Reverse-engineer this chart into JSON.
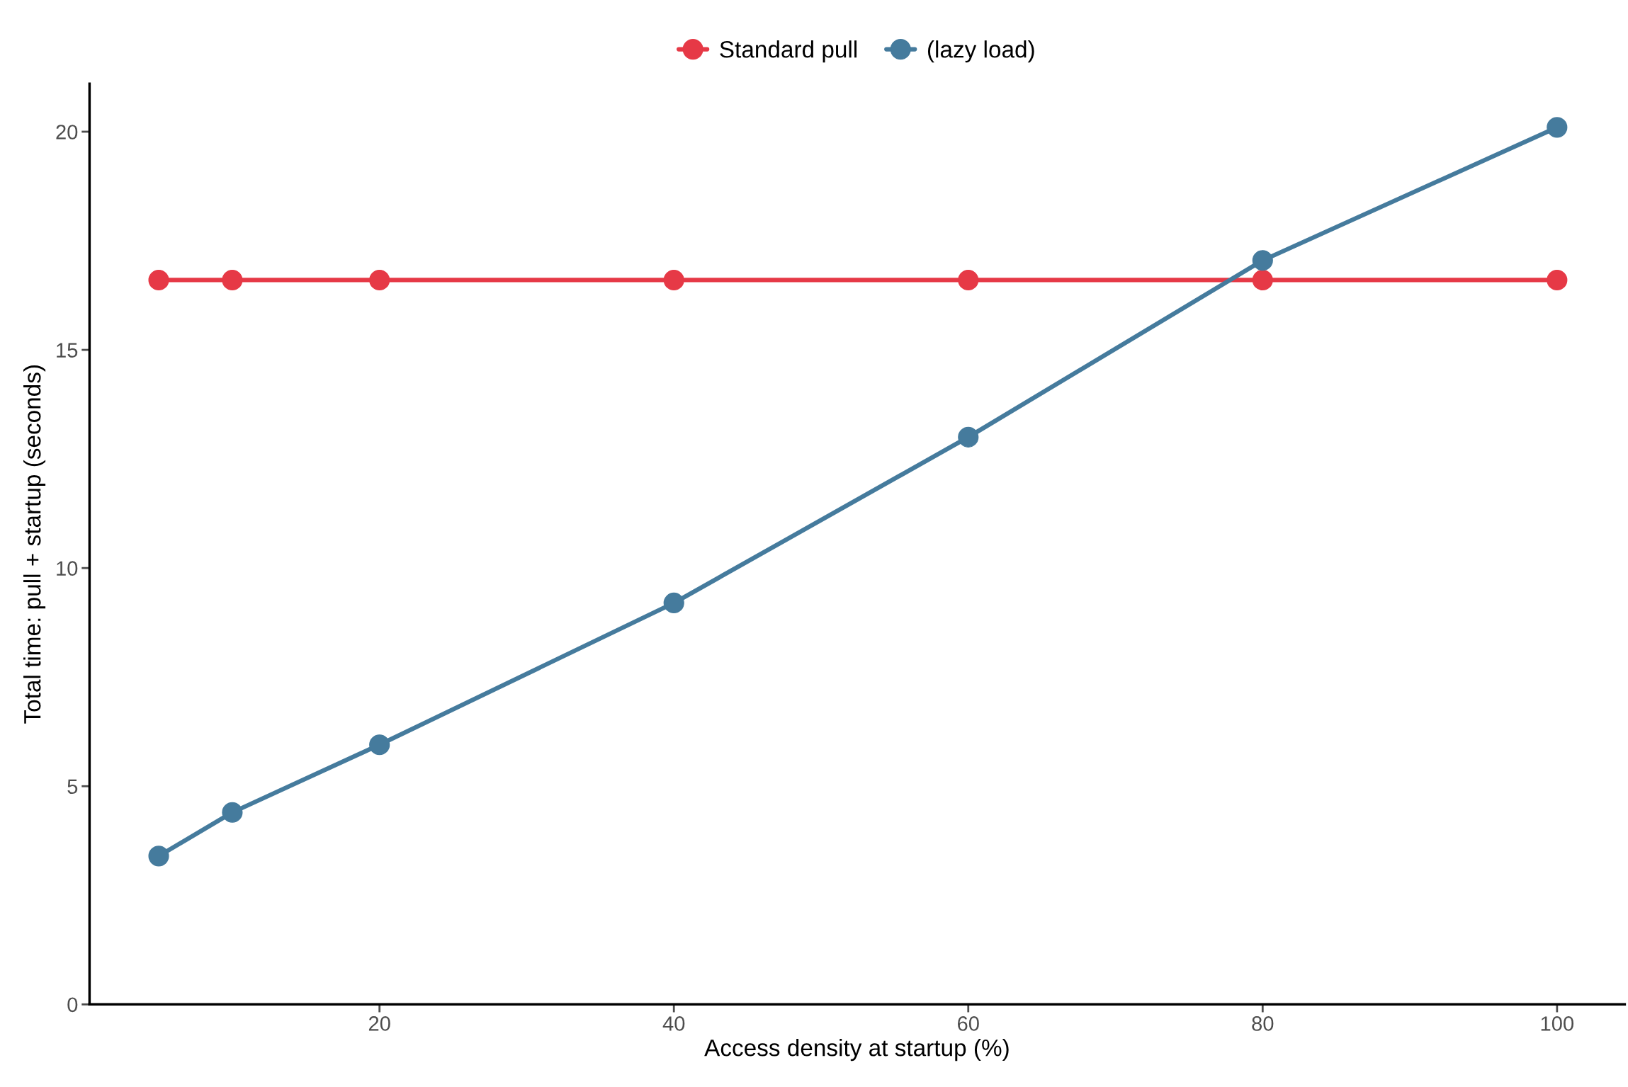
{
  "chart_data": {
    "type": "line",
    "xlabel": "Access density at startup (%)",
    "ylabel": "Total time: pull + startup (seconds)",
    "x": [
      5,
      10,
      20,
      40,
      60,
      80,
      100
    ],
    "series": [
      {
        "name": "Standard pull",
        "color": "#e63946",
        "values": [
          16.6,
          16.6,
          16.6,
          16.6,
          16.6,
          16.6,
          16.6
        ]
      },
      {
        "name": "(lazy load)",
        "color": "#457b9d",
        "values": [
          3.4,
          4.4,
          5.95,
          9.2,
          13.0,
          17.05,
          20.1
        ]
      }
    ],
    "xlim": [
      0.3,
      104.6
    ],
    "ylim": [
      0,
      21.1
    ],
    "xticks": [
      20,
      40,
      60,
      80,
      100
    ],
    "yticks": [
      0,
      5,
      10,
      15,
      20
    ],
    "marker": "circle",
    "line_style": "solid",
    "grid": false,
    "legend": "top"
  }
}
